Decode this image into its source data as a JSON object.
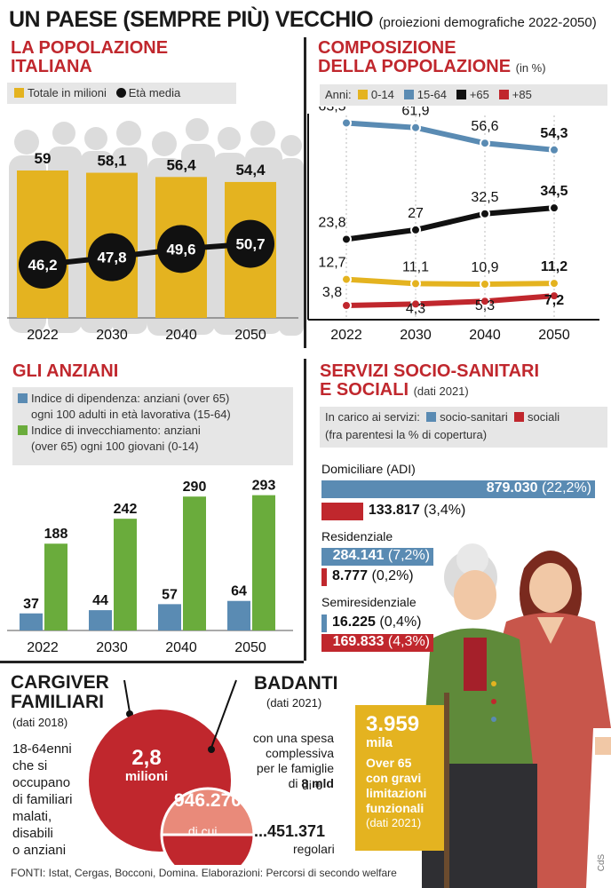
{
  "header": {
    "title": "UN PAESE (SEMPRE PIÙ) VECCHIO",
    "subtitle": "(proiezioni demografiche 2022-2050)"
  },
  "colors": {
    "red": "#c0272d",
    "yellow": "#e4b320",
    "blue": "#5a8bb3",
    "green": "#6aac3c",
    "black": "#111111",
    "gray": "#d8d8d8"
  },
  "popolazione": {
    "title_1": "LA POPOLAZIONE",
    "title_2": "ITALIANA",
    "legend_totale": "Totale in milioni",
    "legend_eta": "Età media"
  },
  "composizione": {
    "title_1": "COMPOSIZIONE",
    "title_2": "DELLA POPOLAZIONE",
    "unit": "(in %)",
    "legend_prefix": "Anni:",
    "legend_0_14": "0-14",
    "legend_15_64": "15-64",
    "legend_65": "+65",
    "legend_85": "+85"
  },
  "anziani": {
    "title": "GLI ANZIANI",
    "legend_dip_1": "Indice di dipendenza: anziani (over 65)",
    "legend_dip_2": "ogni 100 adulti in età lavorativa (15-64)",
    "legend_inv_1": "Indice di invecchiamento: anziani",
    "legend_inv_2": "(over 65) ogni 100 giovani (0-14)"
  },
  "servizi": {
    "title_1": "SERVIZI SOCIO-SANITARI",
    "title_2": "E SOCIALI",
    "year": "(dati 2021)",
    "legend_prefix": "In carico ai servizi:",
    "legend_socio": "socio-sanitari",
    "legend_sociali": "sociali",
    "legend_note": "(fra parentesi la % di copertura)",
    "domiciliare_name": "Domiciliare (ADI)",
    "dom_socio_value": "879.030",
    "dom_socio_pct": "(22,2%)",
    "dom_soc_value": "133.817",
    "dom_soc_pct": "(3,4%)",
    "residenziale_name": "Residenziale",
    "res_socio_value": "284.141",
    "res_socio_pct": "(7,2%)",
    "res_soc_value": "8.777",
    "res_soc_pct": "(0,2%)",
    "semi_name": "Semiresidenziale",
    "semi_socio_value": "16.225",
    "semi_socio_pct": "(0,4%)",
    "semi_soc_value": "169.833",
    "semi_soc_pct": "(4,3%)"
  },
  "caregiver": {
    "title_1": "CARGIVER",
    "title_2": "FAMILIARI",
    "year": "(dati 2018)",
    "description": "18-64enni\nche si\noccupano\ndi familiari\nmalati,\ndisabili\no anziani",
    "big_value": "2,8",
    "big_unit": "milioni"
  },
  "badanti": {
    "title": "BADANTI",
    "year": "(dati 2021)",
    "description": "con una spesa\ncomplessiva\nper le famiglie\ndi",
    "spesa": "8 mld",
    "spesa_unit": "di €",
    "total": "946.270",
    "dicui": "di cui...",
    "regolari_value": "...451.371",
    "regolari_label": "regolari"
  },
  "over65": {
    "value": "3.959",
    "unit": "mila",
    "description": "Over 65\ncon gravi\nlimitazioni\nfunzionali",
    "year": "(dati 2021)"
  },
  "footer": {
    "sources": "FONTI: Istat, Cergas, Bocconi, Domina. Elaborazioni: Percorsi di secondo welfare",
    "credit": "CdS"
  },
  "chart_data": [
    {
      "type": "bar",
      "title": "LA POPOLAZIONE ITALIANA",
      "categories": [
        "2022",
        "2030",
        "2040",
        "2050"
      ],
      "series": [
        {
          "name": "Totale in milioni",
          "type": "bar",
          "values": [
            59,
            58.1,
            56.4,
            54.4
          ],
          "labels": [
            "59",
            "58,1",
            "56,4",
            "54,4"
          ]
        },
        {
          "name": "Età media",
          "type": "line",
          "values": [
            46.2,
            47.8,
            49.6,
            50.7
          ],
          "labels": [
            "46,2",
            "47,8",
            "49,6",
            "50,7"
          ]
        }
      ],
      "legend": "top-left"
    },
    {
      "type": "line",
      "title": "COMPOSIZIONE DELLA POPOLAZIONE",
      "categories": [
        "2022",
        "2030",
        "2040",
        "2050"
      ],
      "series": [
        {
          "name": "15-64",
          "values": [
            63.5,
            61.9,
            56.6,
            54.3
          ],
          "labels": [
            "63,5",
            "61,9",
            "56,6",
            "54,3"
          ]
        },
        {
          "name": "+65",
          "values": [
            23.8,
            27,
            32.5,
            34.5
          ],
          "labels": [
            "23,8",
            "27",
            "32,5",
            "34,5"
          ]
        },
        {
          "name": "0-14",
          "values": [
            12.7,
            11.1,
            10.9,
            11.2
          ],
          "labels": [
            "12,7",
            "11,1",
            "10,9",
            "11,2"
          ]
        },
        {
          "name": "+85",
          "values": [
            3.8,
            4.3,
            5.3,
            7.2
          ],
          "labels": [
            "3,8",
            "4,3",
            "5,3",
            "7,2"
          ]
        }
      ],
      "legend": "top"
    },
    {
      "type": "bar",
      "title": "GLI ANZIANI",
      "categories": [
        "2022",
        "2030",
        "2040",
        "2050"
      ],
      "series": [
        {
          "name": "Indice di dipendenza",
          "values": [
            37,
            44,
            57,
            64
          ]
        },
        {
          "name": "Indice di invecchiamento",
          "values": [
            188,
            242,
            290,
            293
          ]
        }
      ],
      "legend": "top"
    },
    {
      "type": "bar",
      "title": "SERVIZI SOCIO-SANITARI E SOCIALI",
      "categories": [
        "Domiciliare (ADI)",
        "Residenziale",
        "Semiresidenziale"
      ],
      "series": [
        {
          "name": "socio-sanitari",
          "values": [
            879030,
            284141,
            16225
          ],
          "coverage_pct": [
            22.2,
            7.2,
            0.4
          ]
        },
        {
          "name": "sociali",
          "values": [
            133817,
            8777,
            169833
          ],
          "coverage_pct": [
            3.4,
            0.2,
            4.3
          ]
        }
      ],
      "orientation": "horizontal"
    }
  ]
}
